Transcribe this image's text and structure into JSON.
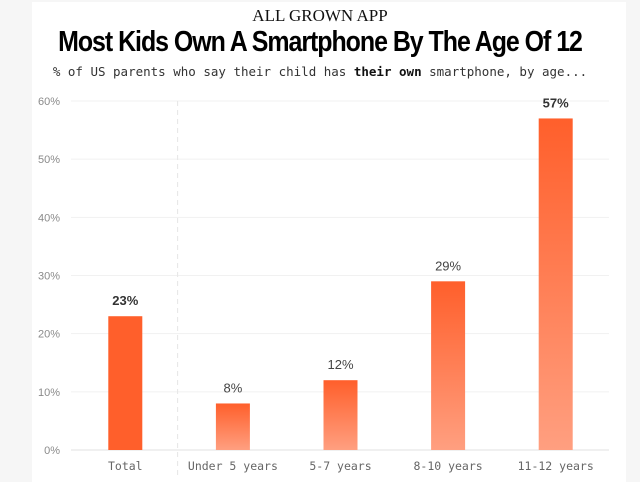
{
  "header": {
    "brand": "ALL GROWN APP",
    "title": "Most Kids Own A Smartphone By The Age Of 12",
    "subtitle_pre": "% of US parents who say their child has ",
    "subtitle_bold": "their own",
    "subtitle_post": " smartphone, by age..."
  },
  "colors": {
    "bar_solid": "#ff5f2b",
    "bar_gradient_top": "#ff5f2b",
    "bar_gradient_bottom": "#ff9f80"
  },
  "chart_data": {
    "type": "bar",
    "title": "Most Kids Own A Smartphone By The Age Of 12",
    "subtitle": "% of US parents who say their child has their own smartphone, by age...",
    "categories": [
      "Total",
      "Under 5 years",
      "5-7 years",
      "8-10 years",
      "11-12 years"
    ],
    "values": [
      23,
      8,
      12,
      29,
      57
    ],
    "data_labels": [
      "23%",
      "8%",
      "12%",
      "29%",
      "57%"
    ],
    "bold_labels": [
      true,
      false,
      false,
      false,
      true
    ],
    "bar_style": [
      "solid",
      "gradient",
      "gradient",
      "gradient",
      "gradient"
    ],
    "xlabel": "",
    "ylabel": "",
    "ylim": [
      0,
      60
    ],
    "yticks": [
      0,
      10,
      20,
      30,
      40,
      50,
      60
    ],
    "ytick_labels": [
      "0%",
      "10%",
      "20%",
      "30%",
      "40%",
      "50%",
      "60%"
    ],
    "grid": true,
    "separator_after_category": "Total",
    "legend": "none"
  }
}
